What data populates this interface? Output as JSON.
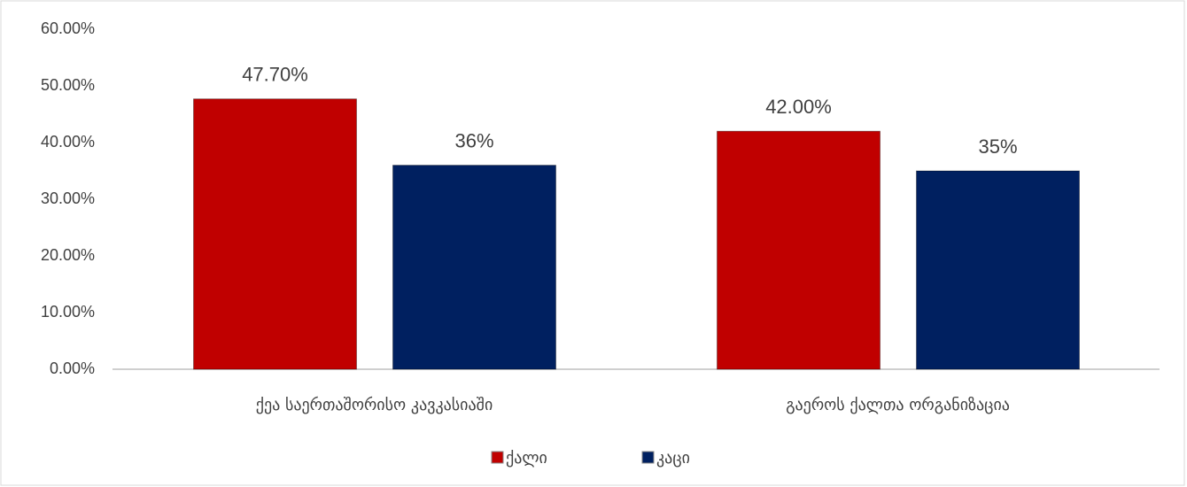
{
  "chart_data": {
    "type": "bar",
    "categories": [
      "ქეა საერთაშორისო კავკასიაში",
      "გაეროს ქალთა ორგანიზაცია"
    ],
    "series": [
      {
        "name": "ქალი",
        "color": "#c00000",
        "values": [
          47.7,
          42.0
        ],
        "value_labels": [
          "47.70%",
          "42.00%"
        ]
      },
      {
        "name": "კაცი",
        "color": "#002060",
        "values": [
          36,
          35
        ],
        "value_labels": [
          "36%",
          "35%"
        ]
      }
    ],
    "ylim": [
      0,
      60
    ],
    "yticks": [
      {
        "value": 0,
        "label": "0.00%"
      },
      {
        "value": 10,
        "label": "10.00%"
      },
      {
        "value": 20,
        "label": "20.00%"
      },
      {
        "value": 30,
        "label": "30.00%"
      },
      {
        "value": 40,
        "label": "40.00%"
      },
      {
        "value": 50,
        "label": "50.00%"
      },
      {
        "value": 60,
        "label": "60.00%"
      }
    ],
    "grid": false,
    "legend": "bottom"
  }
}
